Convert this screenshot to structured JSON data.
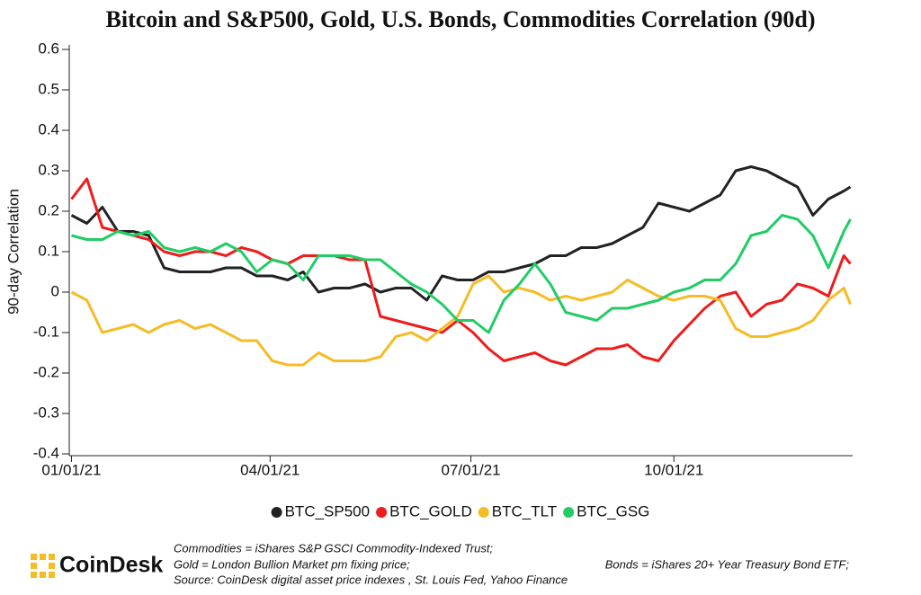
{
  "chart_data": {
    "type": "line",
    "title": "Bitcoin and S&P500, Gold, U.S. Bonds, Commodities Correlation (90d)",
    "y_label": "90-day Correlation",
    "x": [
      "2021-01-01",
      "2021-01-08",
      "2021-01-15",
      "2021-01-22",
      "2021-01-29",
      "2021-02-05",
      "2021-02-12",
      "2021-02-19",
      "2021-02-26",
      "2021-03-05",
      "2021-03-12",
      "2021-03-19",
      "2021-03-26",
      "2021-04-02",
      "2021-04-09",
      "2021-04-16",
      "2021-04-23",
      "2021-04-30",
      "2021-05-07",
      "2021-05-14",
      "2021-05-21",
      "2021-05-28",
      "2021-06-04",
      "2021-06-11",
      "2021-06-18",
      "2021-06-25",
      "2021-07-02",
      "2021-07-09",
      "2021-07-16",
      "2021-07-23",
      "2021-07-30",
      "2021-08-06",
      "2021-08-13",
      "2021-08-20",
      "2021-08-27",
      "2021-09-03",
      "2021-09-10",
      "2021-09-17",
      "2021-09-24",
      "2021-10-01",
      "2021-10-08",
      "2021-10-15",
      "2021-10-22",
      "2021-10-29",
      "2021-11-05",
      "2021-11-12",
      "2021-11-19",
      "2021-11-26",
      "2021-12-03",
      "2021-12-10",
      "2021-12-17",
      "2021-12-20"
    ],
    "series": [
      {
        "name": "BTC_SP500",
        "color": "#222222",
        "values": [
          0.19,
          0.17,
          0.21,
          0.15,
          0.15,
          0.14,
          0.06,
          0.05,
          0.05,
          0.05,
          0.06,
          0.06,
          0.04,
          0.04,
          0.03,
          0.05,
          0.0,
          0.01,
          0.01,
          0.02,
          0.0,
          0.01,
          0.01,
          -0.02,
          0.04,
          0.03,
          0.03,
          0.05,
          0.05,
          0.06,
          0.07,
          0.09,
          0.09,
          0.11,
          0.11,
          0.12,
          0.14,
          0.16,
          0.22,
          0.21,
          0.2,
          0.22,
          0.24,
          0.3,
          0.31,
          0.3,
          0.28,
          0.26,
          0.19,
          0.23,
          0.25,
          0.26
        ]
      },
      {
        "name": "BTC_GOLD",
        "color": "#ee1c1c",
        "values": [
          0.23,
          0.28,
          0.16,
          0.15,
          0.14,
          0.13,
          0.1,
          0.09,
          0.1,
          0.1,
          0.09,
          0.11,
          0.1,
          0.08,
          0.07,
          0.09,
          0.09,
          0.09,
          0.08,
          0.08,
          -0.06,
          -0.07,
          -0.08,
          -0.09,
          -0.1,
          -0.07,
          -0.1,
          -0.14,
          -0.17,
          -0.16,
          -0.15,
          -0.17,
          -0.18,
          -0.16,
          -0.14,
          -0.14,
          -0.13,
          -0.16,
          -0.17,
          -0.12,
          -0.08,
          -0.04,
          -0.01,
          0.0,
          -0.06,
          -0.03,
          -0.02,
          0.02,
          0.01,
          -0.01,
          0.09,
          0.07
        ]
      },
      {
        "name": "BTC_TLT",
        "color": "#f5bc26",
        "values": [
          0.0,
          -0.02,
          -0.1,
          -0.09,
          -0.08,
          -0.1,
          -0.08,
          -0.07,
          -0.09,
          -0.08,
          -0.1,
          -0.12,
          -0.12,
          -0.17,
          -0.18,
          -0.18,
          -0.15,
          -0.17,
          -0.17,
          -0.17,
          -0.16,
          -0.11,
          -0.1,
          -0.12,
          -0.09,
          -0.06,
          0.02,
          0.04,
          0.0,
          0.01,
          0.0,
          -0.02,
          -0.01,
          -0.02,
          -0.01,
          0.0,
          0.03,
          0.01,
          -0.01,
          -0.02,
          -0.01,
          -0.01,
          -0.02,
          -0.09,
          -0.11,
          -0.11,
          -0.1,
          -0.09,
          -0.07,
          -0.02,
          0.01,
          -0.03
        ]
      },
      {
        "name": "BTC_GSG",
        "color": "#21cc66",
        "values": [
          0.14,
          0.13,
          0.13,
          0.15,
          0.14,
          0.15,
          0.11,
          0.1,
          0.11,
          0.1,
          0.12,
          0.1,
          0.05,
          0.08,
          0.07,
          0.03,
          0.09,
          0.09,
          0.09,
          0.08,
          0.08,
          0.05,
          0.02,
          0.0,
          -0.03,
          -0.07,
          -0.07,
          -0.1,
          -0.02,
          0.02,
          0.07,
          0.02,
          -0.05,
          -0.06,
          -0.07,
          -0.04,
          -0.04,
          -0.03,
          -0.02,
          0.0,
          0.01,
          0.03,
          0.03,
          0.07,
          0.14,
          0.15,
          0.19,
          0.18,
          0.14,
          0.06,
          0.15,
          0.18
        ]
      }
    ],
    "xlim": [
      "2020-12-31",
      "2021-12-21"
    ],
    "xticks": [
      {
        "value": "2021-01-01",
        "label": "01/01/21"
      },
      {
        "value": "2021-04-01",
        "label": "04/01/21"
      },
      {
        "value": "2021-07-01",
        "label": "07/01/21"
      },
      {
        "value": "2021-10-01",
        "label": "10/01/21"
      }
    ],
    "ylim": [
      -0.4,
      0.6
    ],
    "yticks": [
      -0.4,
      -0.3,
      -0.2,
      -0.1,
      0,
      0.1,
      0.2,
      0.3,
      0.4,
      0.5,
      0.6
    ],
    "grid": false,
    "legend": "bottom"
  },
  "footer": {
    "brand": "CoinDesk",
    "notes": [
      "Commodities = iShares S&P GSCI Commodity-Indexed Trust;",
      "Gold = London Bullion Market pm fixing price;",
      "Bonds = iShares 20+ Year Treasury Bond ETF;",
      "Source: CoinDesk digital asset price indexes , St. Louis Fed, Yahoo Finance"
    ]
  }
}
